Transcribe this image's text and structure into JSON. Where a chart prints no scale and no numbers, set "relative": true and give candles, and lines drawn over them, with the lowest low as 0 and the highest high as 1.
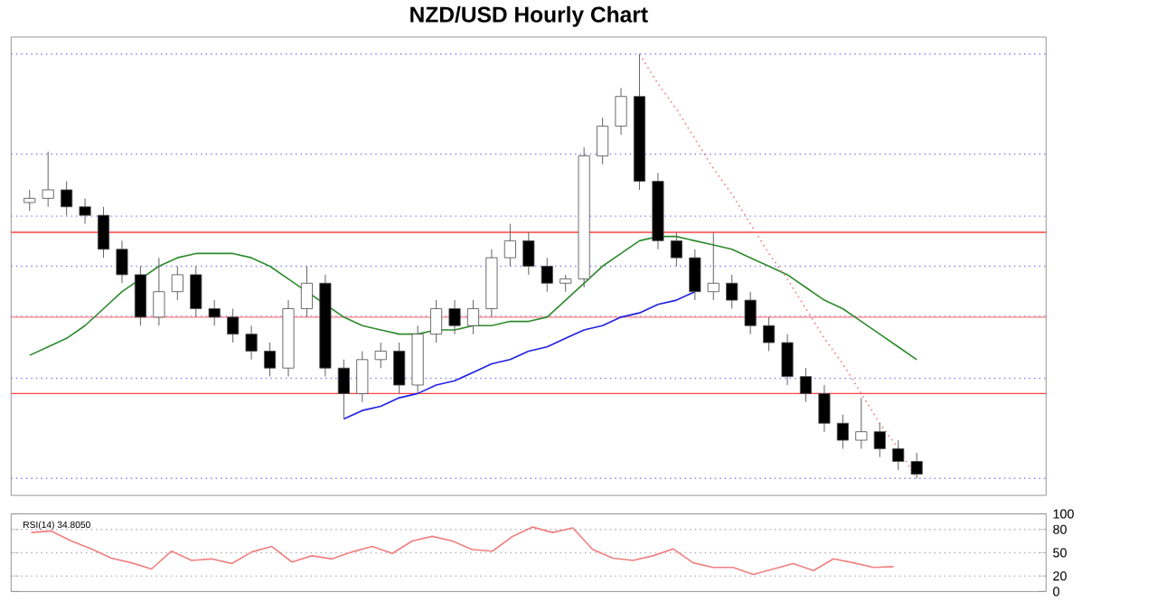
{
  "chart_data": [
    {
      "type": "candlestick",
      "title": "NZD/USD Hourly Chart",
      "relative": true,
      "categories": [
        null,
        null,
        null,
        null,
        null,
        null,
        null,
        null,
        null,
        null,
        null,
        null,
        null,
        null,
        null,
        null,
        null,
        null,
        null,
        null,
        null,
        null,
        null,
        null,
        null,
        null,
        null,
        null,
        null,
        null,
        null,
        null,
        null,
        null,
        null,
        null,
        null,
        null,
        null,
        null,
        null,
        null,
        null,
        null,
        null,
        null,
        null,
        null,
        null
      ],
      "ohlc": [
        [
          0.65,
          0.68,
          0.63,
          0.66
        ],
        [
          0.66,
          0.77,
          0.64,
          0.68
        ],
        [
          0.68,
          0.7,
          0.62,
          0.64
        ],
        [
          0.64,
          0.66,
          0.6,
          0.62
        ],
        [
          0.62,
          0.64,
          0.52,
          0.54
        ],
        [
          0.54,
          0.56,
          0.46,
          0.48
        ],
        [
          0.48,
          0.5,
          0.36,
          0.38
        ],
        [
          0.38,
          0.52,
          0.36,
          0.44
        ],
        [
          0.44,
          0.5,
          0.42,
          0.48
        ],
        [
          0.48,
          0.5,
          0.38,
          0.4
        ],
        [
          0.4,
          0.42,
          0.36,
          0.38
        ],
        [
          0.38,
          0.4,
          0.32,
          0.34
        ],
        [
          0.34,
          0.36,
          0.28,
          0.3
        ],
        [
          0.3,
          0.32,
          0.24,
          0.26
        ],
        [
          0.26,
          0.42,
          0.24,
          0.4
        ],
        [
          0.4,
          0.5,
          0.38,
          0.46
        ],
        [
          0.46,
          0.48,
          0.24,
          0.26
        ],
        [
          0.26,
          0.28,
          0.14,
          0.2
        ],
        [
          0.2,
          0.3,
          0.18,
          0.28
        ],
        [
          0.28,
          0.32,
          0.26,
          0.3
        ],
        [
          0.3,
          0.32,
          0.2,
          0.22
        ],
        [
          0.22,
          0.36,
          0.2,
          0.34
        ],
        [
          0.34,
          0.42,
          0.32,
          0.4
        ],
        [
          0.4,
          0.42,
          0.34,
          0.36
        ],
        [
          0.36,
          0.42,
          0.34,
          0.4
        ],
        [
          0.4,
          0.54,
          0.38,
          0.52
        ],
        [
          0.52,
          0.6,
          0.5,
          0.56
        ],
        [
          0.56,
          0.58,
          0.48,
          0.5
        ],
        [
          0.5,
          0.52,
          0.44,
          0.46
        ],
        [
          0.46,
          0.48,
          0.44,
          0.47
        ],
        [
          0.47,
          0.78,
          0.45,
          0.76
        ],
        [
          0.76,
          0.85,
          0.74,
          0.83
        ],
        [
          0.83,
          0.92,
          0.81,
          0.9
        ],
        [
          0.9,
          1.0,
          0.68,
          0.7
        ],
        [
          0.7,
          0.72,
          0.54,
          0.56
        ],
        [
          0.56,
          0.58,
          0.5,
          0.52
        ],
        [
          0.52,
          0.54,
          0.42,
          0.44
        ],
        [
          0.44,
          0.58,
          0.42,
          0.46
        ],
        [
          0.46,
          0.48,
          0.4,
          0.42
        ],
        [
          0.42,
          0.44,
          0.34,
          0.36
        ],
        [
          0.36,
          0.38,
          0.3,
          0.32
        ],
        [
          0.32,
          0.34,
          0.22,
          0.24
        ],
        [
          0.24,
          0.26,
          0.18,
          0.2
        ],
        [
          0.2,
          0.22,
          0.11,
          0.13
        ],
        [
          0.13,
          0.15,
          0.07,
          0.09
        ],
        [
          0.09,
          0.19,
          0.07,
          0.11
        ],
        [
          0.11,
          0.13,
          0.05,
          0.07
        ],
        [
          0.07,
          0.09,
          0.02,
          0.04
        ],
        [
          0.04,
          0.06,
          0.0,
          0.01
        ]
      ],
      "series": [
        {
          "type": "line",
          "color": "#2e8b2e",
          "values": [
            0.29,
            0.31,
            0.33,
            0.36,
            0.4,
            0.44,
            0.47,
            0.5,
            0.52,
            0.53,
            0.53,
            0.53,
            0.52,
            0.5,
            0.47,
            0.44,
            0.41,
            0.38,
            0.36,
            0.35,
            0.34,
            0.34,
            0.35,
            0.35,
            0.36,
            0.36,
            0.37,
            0.37,
            0.38,
            0.42,
            0.46,
            0.5,
            0.53,
            0.56,
            0.57,
            0.57,
            0.56,
            0.55,
            0.54,
            0.52,
            0.5,
            0.48,
            0.45,
            0.42,
            0.4,
            0.37,
            0.34,
            0.31,
            0.28
          ]
        },
        {
          "type": "line",
          "color": "#2020e0",
          "values": [
            null,
            null,
            null,
            null,
            null,
            null,
            null,
            null,
            null,
            null,
            null,
            null,
            null,
            null,
            null,
            null,
            null,
            0.14,
            0.16,
            0.17,
            0.19,
            0.2,
            0.22,
            0.23,
            0.25,
            0.27,
            0.28,
            0.3,
            0.31,
            0.33,
            0.35,
            0.36,
            0.38,
            0.39,
            0.41,
            0.42,
            0.44,
            null,
            null,
            null,
            null,
            null,
            null,
            null,
            null,
            null,
            null,
            null,
            null
          ]
        },
        {
          "type": "line",
          "color": "#f08080",
          "line_style": "dotted",
          "values": [
            null,
            null,
            null,
            null,
            null,
            null,
            null,
            null,
            null,
            null,
            null,
            null,
            null,
            null,
            null,
            null,
            null,
            null,
            null,
            null,
            null,
            null,
            null,
            null,
            null,
            null,
            null,
            null,
            null,
            null,
            null,
            null,
            null,
            1.0,
            0.93,
            0.87,
            0.8,
            0.73,
            0.67,
            0.6,
            0.53,
            0.47,
            0.4,
            0.33,
            0.27,
            0.2,
            0.13,
            0.07,
            0.0
          ]
        }
      ],
      "ref_lines": [
        {
          "axis": "y",
          "value": 1.0,
          "color": "#8080ff",
          "line_style": "dotted"
        },
        {
          "axis": "y",
          "value": 0.764,
          "color": "#8080ff",
          "line_style": "dotted"
        },
        {
          "axis": "y",
          "value": 0.618,
          "color": "#8080ff",
          "line_style": "dotted"
        },
        {
          "axis": "y",
          "value": 0.5,
          "color": "#8080ff",
          "line_style": "dotted"
        },
        {
          "axis": "y",
          "value": 0.382,
          "color": "#8080ff",
          "line_style": "dotted"
        },
        {
          "axis": "y",
          "value": 0.236,
          "color": "#8080ff",
          "line_style": "dotted"
        },
        {
          "axis": "y",
          "value": 0.0,
          "color": "#8080ff",
          "line_style": "dotted"
        },
        {
          "axis": "y",
          "value": 0.58,
          "color": "#ff4040",
          "line_style": "solid"
        },
        {
          "axis": "y",
          "value": 0.38,
          "color": "#ff8080",
          "line_style": "solid"
        },
        {
          "axis": "y",
          "value": 0.2,
          "color": "#ff4040",
          "line_style": "solid"
        }
      ]
    },
    {
      "type": "line",
      "title": "RSI(14) 34.8050",
      "color": "#f08080",
      "tick_labels": "y",
      "categories": [
        null,
        null,
        null,
        null,
        null,
        null,
        null,
        null,
        null,
        null,
        null,
        null,
        null,
        null,
        null,
        null,
        null,
        null,
        null,
        null,
        null,
        null,
        null,
        null,
        null,
        null,
        null,
        null,
        null,
        null,
        null,
        null,
        null,
        null,
        null,
        null,
        null,
        null,
        null,
        null,
        null,
        null,
        null,
        null
      ],
      "values": [
        76,
        78,
        65,
        55,
        43,
        37,
        29,
        52,
        40,
        42,
        36,
        51,
        58,
        38,
        46,
        42,
        51,
        58,
        49,
        65,
        71,
        65,
        54,
        52,
        71,
        83,
        76,
        82,
        54,
        43,
        40,
        46,
        55,
        37,
        31,
        31,
        22,
        29,
        36,
        27,
        42,
        37,
        31,
        32
      ],
      "ylim": [
        0,
        100
      ],
      "yticks": [
        0,
        20,
        50,
        80,
        100
      ],
      "ref_lines": [
        {
          "axis": "y",
          "value": 80,
          "color": "#b0b0b0",
          "line_style": "dotted"
        },
        {
          "axis": "y",
          "value": 50,
          "color": "#b0b0b0",
          "line_style": "dotted"
        },
        {
          "axis": "y",
          "value": 20,
          "color": "#b0b0b0",
          "line_style": "dotted"
        }
      ]
    }
  ]
}
